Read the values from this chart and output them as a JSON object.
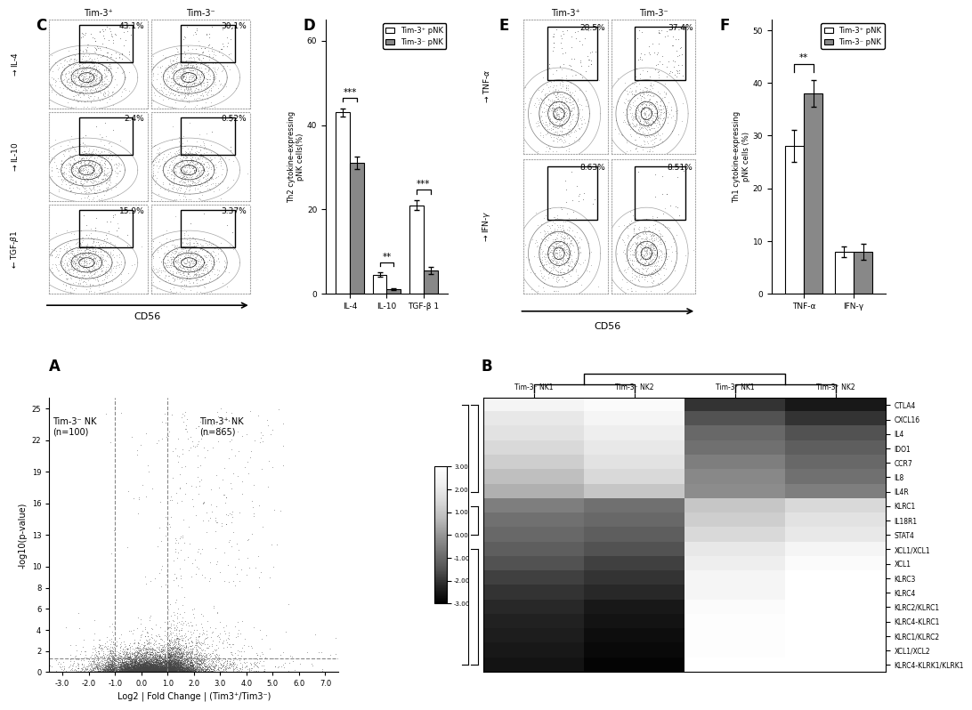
{
  "panel_C": {
    "label": "C",
    "cols": [
      "Tim-3⁺",
      "Tim-3⁻"
    ],
    "percentages": [
      [
        "43.1%",
        "30.1%"
      ],
      [
        "2.4%",
        "0.52%"
      ],
      [
        "15.9%",
        "3.37%"
      ]
    ],
    "row_ylabels": [
      "→IL-4",
      "→IL-10",
      "←TGF-β1"
    ],
    "xlabel": "CD56"
  },
  "panel_D": {
    "label": "D",
    "categories": [
      "IL-4",
      "IL-10",
      "TGF-β 1"
    ],
    "tim3pos_values": [
      43,
      4.5,
      21
    ],
    "tim3neg_values": [
      31,
      1.0,
      5.5
    ],
    "tim3pos_errors": [
      1.0,
      0.5,
      1.2
    ],
    "tim3neg_errors": [
      1.5,
      0.2,
      0.8
    ],
    "ylabel": "Th2 cytokine-expressing\npNK cells(%)",
    "ylim": [
      0,
      65
    ],
    "yticks": [
      0,
      20,
      40,
      60
    ],
    "significance": [
      "***",
      "**",
      "***"
    ],
    "legend_pos_label": "Tim-3⁺ pNK",
    "legend_neg_label": "Tim-3⁻ pNK"
  },
  "panel_E": {
    "label": "E",
    "cols": [
      "Tim-3⁺",
      "Tim-3⁻"
    ],
    "percentages": [
      [
        "28.5%",
        "37.4%"
      ],
      [
        "8.63%",
        "8.51%"
      ]
    ],
    "row_ylabels": [
      "→TNF-α",
      "→IFN-γ"
    ],
    "xlabel": "CD56"
  },
  "panel_F": {
    "label": "F",
    "categories": [
      "TNF-α",
      "IFN-γ"
    ],
    "tim3pos_values": [
      28,
      8
    ],
    "tim3neg_values": [
      38,
      8
    ],
    "tim3pos_errors": [
      3,
      1
    ],
    "tim3neg_errors": [
      2.5,
      1.5
    ],
    "ylabel": "Th1 cytokine-expressing\npNK cells (%)",
    "ylim": [
      0,
      52
    ],
    "yticks": [
      0,
      10,
      20,
      30,
      40,
      50
    ],
    "significance": [
      "**",
      ""
    ],
    "legend_pos_label": "Tim-3⁺ pNK",
    "legend_neg_label": "Tim-3⁻ pNK"
  },
  "panel_A": {
    "label": "A",
    "xlabel": "Log2 | Fold Change | (Tim3⁺/Tim3⁻)",
    "ylabel": "-log10(p-value)",
    "xlim": [
      -3.5,
      7.5
    ],
    "ylim": [
      0,
      26
    ],
    "xticks": [
      -3.0,
      -2.0,
      -1.0,
      0.0,
      1.0,
      2.0,
      3.0,
      4.0,
      5.0,
      6.0,
      7.0
    ],
    "yticks": [
      0,
      2,
      4,
      6,
      8,
      10,
      13,
      16,
      19,
      22,
      25
    ],
    "label_neg": "Tim-3⁻ NK\n(n=100)",
    "label_pos": "Tim-3⁺ NK\n(n=865)",
    "hline_y": 1.3,
    "vline_x1": -1.0,
    "vline_x2": 1.0
  },
  "panel_B": {
    "label": "B",
    "genes": [
      "CTLA4",
      "CXCL16",
      "IL4",
      "IDO1",
      "CCR7",
      "IL8",
      "IL4R",
      "KLRC1",
      "IL18R1",
      "STAT4",
      "XCL1/XCL1",
      "XCL1",
      "KLRC3",
      "KLRC4",
      "KLRC2/KLRC1",
      "KLRC4-KLRC1",
      "KLRC1/KLRC2",
      "XCL1/XCL2",
      "KLRC4-KLRK1/KLRK1"
    ],
    "samples": [
      "Tim-3⁻ NK1",
      "Tim-3⁻ NK2",
      "Tim-3⁺ NK1",
      "Tim-3⁺ NK2"
    ],
    "colorbar_ticks": [
      3.0,
      2.0,
      1.0,
      0.0,
      -1.0,
      -2.0,
      -3.0
    ],
    "data": [
      [
        2.5,
        2.8,
        -2.0,
        -2.5
      ],
      [
        2.0,
        2.5,
        -1.5,
        -2.0
      ],
      [
        1.8,
        2.2,
        -1.0,
        -1.5
      ],
      [
        1.5,
        2.0,
        -0.8,
        -1.2
      ],
      [
        1.2,
        1.8,
        -0.5,
        -1.0
      ],
      [
        0.8,
        1.5,
        -0.3,
        -0.8
      ],
      [
        0.5,
        1.0,
        -0.2,
        -0.5
      ],
      [
        -0.5,
        -0.8,
        1.0,
        1.5
      ],
      [
        -0.8,
        -1.0,
        1.2,
        1.8
      ],
      [
        -1.0,
        -1.2,
        1.5,
        2.0
      ],
      [
        -1.2,
        -1.5,
        2.0,
        2.5
      ],
      [
        -1.5,
        -1.8,
        2.2,
        2.8
      ],
      [
        -1.8,
        -2.0,
        2.5,
        3.0
      ],
      [
        -2.0,
        -2.2,
        2.5,
        3.0
      ],
      [
        -2.2,
        -2.5,
        2.8,
        3.0
      ],
      [
        -2.3,
        -2.6,
        2.9,
        3.0
      ],
      [
        -2.4,
        -2.7,
        2.9,
        3.0
      ],
      [
        -2.5,
        -2.8,
        2.9,
        3.0
      ],
      [
        -2.6,
        -2.9,
        3.0,
        3.0
      ]
    ]
  },
  "bg_color": "#ffffff",
  "scatter_color": "#444444",
  "bar_pos_color": "#ffffff",
  "bar_neg_color": "#888888",
  "bar_edge_color": "#000000"
}
